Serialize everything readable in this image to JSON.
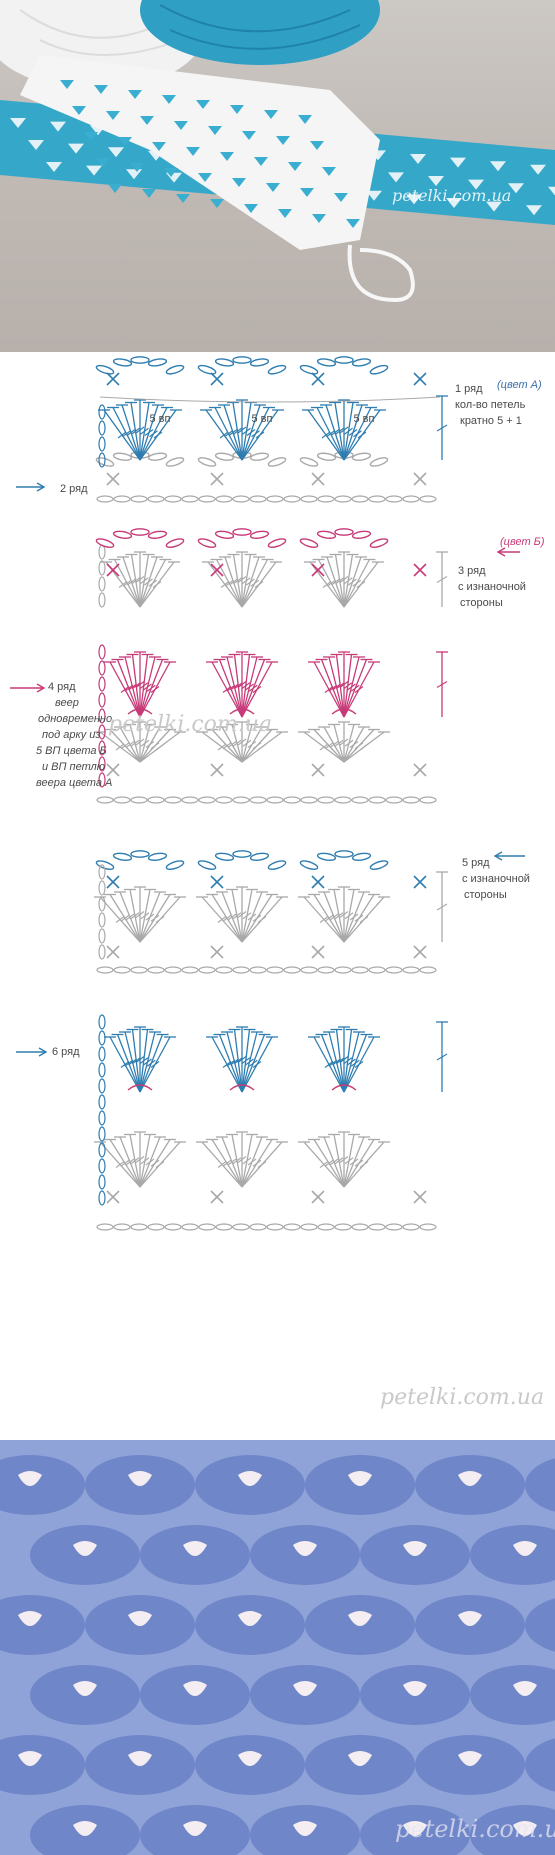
{
  "watermark": "petelki.com.ua",
  "colors": {
    "color_a": "#2e7db0",
    "color_b": "#c73a78",
    "gray": "#a9a9a9",
    "label_text": "#4a4a4a",
    "photo_top_blue": "#34a6c8",
    "photo_bottom_blue": "#6f86c9"
  },
  "row1": {
    "title": "1 ряд",
    "color_tag": "(цвет А)",
    "line2": "кол-во петель",
    "line3": "кратно 5 + 1",
    "arc_label": "5 вп"
  },
  "row2": {
    "title": "2 ряд"
  },
  "row3": {
    "color_tag": "(цвет Б)",
    "title": "3 ряд",
    "line2": "с изнаночной",
    "line3": "стороны"
  },
  "row4": {
    "title": "4 ряд",
    "lines": [
      "веер",
      "одновременно",
      "под арку из",
      "5 ВП цвета Б",
      "и ВП петлю",
      "веера цвета А"
    ]
  },
  "row5": {
    "title": "5 ряд",
    "line2": "с изнаночной",
    "line3": "стороны"
  },
  "row6": {
    "title": "6 ряд"
  }
}
